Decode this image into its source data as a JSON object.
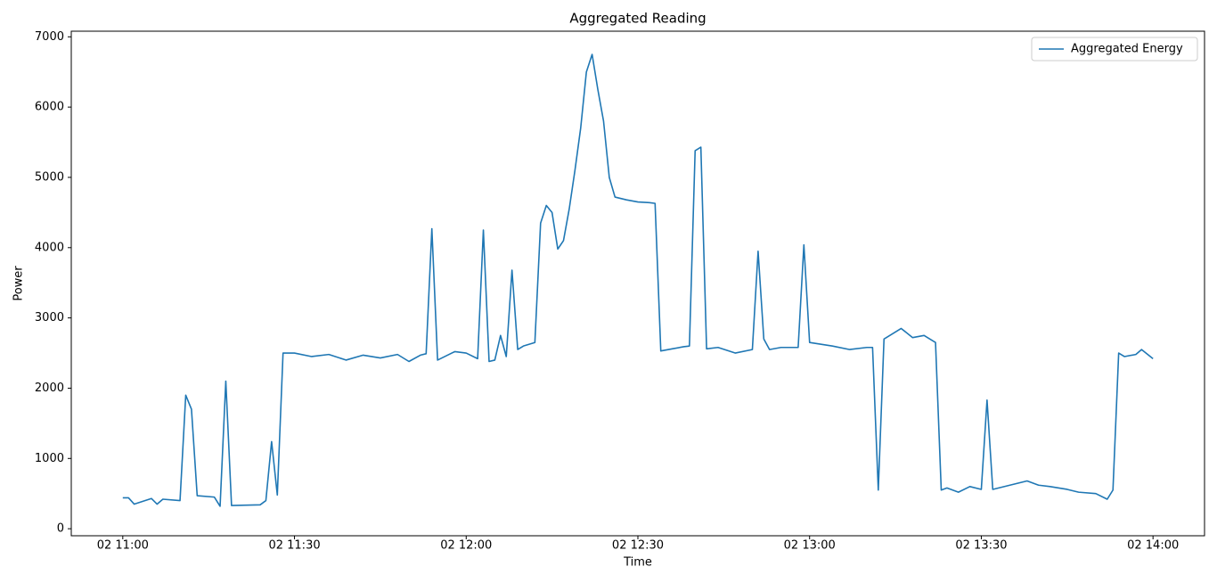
{
  "chart_data": {
    "type": "line",
    "title": "Aggregated Reading",
    "x_label": "Time",
    "y_label": "Power",
    "x": [
      "02 11:00",
      "02 11:01",
      "02 11:02",
      "02 11:05",
      "02 11:06",
      "02 11:07",
      "02 11:10",
      "02 11:11",
      "02 11:12",
      "02 11:13",
      "02 11:16",
      "02 11:17",
      "02 11:18",
      "02 11:19",
      "02 11:24",
      "02 11:25",
      "02 11:26",
      "02 11:27",
      "02 11:28",
      "02 11:30",
      "02 11:33",
      "02 11:36",
      "02 11:39",
      "02 11:42",
      "02 11:45",
      "02 11:48",
      "02 11:50",
      "02 11:52",
      "02 11:53",
      "02 11:54",
      "02 11:55",
      "02 11:58",
      "02 12:00",
      "02 12:02",
      "02 12:03",
      "02 12:04",
      "02 12:05",
      "02 12:06",
      "02 12:07",
      "02 12:08",
      "02 12:09",
      "02 12:10",
      "02 12:12",
      "02 12:13",
      "02 12:14",
      "02 12:15",
      "02 12:16",
      "02 12:17",
      "02 12:18",
      "02 12:19",
      "02 12:20",
      "02 12:21",
      "02 12:22",
      "02 12:23",
      "02 12:24",
      "02 12:25",
      "02 12:26",
      "02 12:28",
      "02 12:30",
      "02 12:32",
      "02 12:33",
      "02 12:34",
      "02 12:36",
      "02 12:38",
      "02 12:39",
      "02 12:40",
      "02 12:41",
      "02 12:42",
      "02 12:44",
      "02 12:47",
      "02 12:50",
      "02 12:51",
      "02 12:52",
      "02 12:53",
      "02 12:55",
      "02 12:58",
      "02 12:59",
      "02 13:00",
      "02 13:04",
      "02 13:07",
      "02 13:10",
      "02 13:11",
      "02 13:12",
      "02 13:13",
      "02 13:16",
      "02 13:18",
      "02 13:20",
      "02 13:22",
      "02 13:23",
      "02 13:24",
      "02 13:26",
      "02 13:28",
      "02 13:30",
      "02 13:31",
      "02 13:32",
      "02 13:35",
      "02 13:38",
      "02 13:40",
      "02 13:42",
      "02 13:45",
      "02 13:47",
      "02 13:50",
      "02 13:52",
      "02 13:53",
      "02 13:54",
      "02 13:55",
      "02 13:57",
      "02 13:58",
      "02 14:00"
    ],
    "series": [
      {
        "name": "Aggregated Energy",
        "color": "#1f77b4",
        "values": [
          440,
          440,
          350,
          430,
          350,
          420,
          400,
          1900,
          1700,
          470,
          450,
          320,
          2100,
          330,
          340,
          400,
          1240,
          480,
          2500,
          2500,
          2450,
          2480,
          2400,
          2470,
          2430,
          2480,
          2380,
          2470,
          2490,
          4270,
          2400,
          2520,
          2500,
          2420,
          4250,
          2380,
          2400,
          2750,
          2450,
          3680,
          2550,
          2600,
          2650,
          4350,
          4600,
          4500,
          3980,
          4100,
          4550,
          5100,
          5700,
          6500,
          6750,
          6250,
          5800,
          5000,
          4720,
          4680,
          4650,
          4640,
          4630,
          2530,
          2560,
          2590,
          2600,
          5380,
          5430,
          2560,
          2580,
          2500,
          2550,
          3950,
          2700,
          2550,
          2580,
          2580,
          4040,
          2650,
          2600,
          2550,
          2580,
          2580,
          550,
          2700,
          2850,
          2720,
          2750,
          2650,
          550,
          580,
          520,
          600,
          560,
          1830,
          560,
          620,
          680,
          620,
          600,
          560,
          520,
          500,
          420,
          550,
          2500,
          2450,
          2480,
          2550,
          2420
        ]
      }
    ],
    "xlim": [
      "02 10:51",
      "02 14:09"
    ],
    "xticks": [
      "02 11:00",
      "02 11:30",
      "02 12:00",
      "02 12:30",
      "02 13:00",
      "02 13:30",
      "02 14:00"
    ],
    "ylim": [
      -100,
      7080
    ],
    "yticks": [
      0,
      1000,
      2000,
      3000,
      4000,
      5000,
      6000,
      7000
    ],
    "legend": "upper right"
  }
}
